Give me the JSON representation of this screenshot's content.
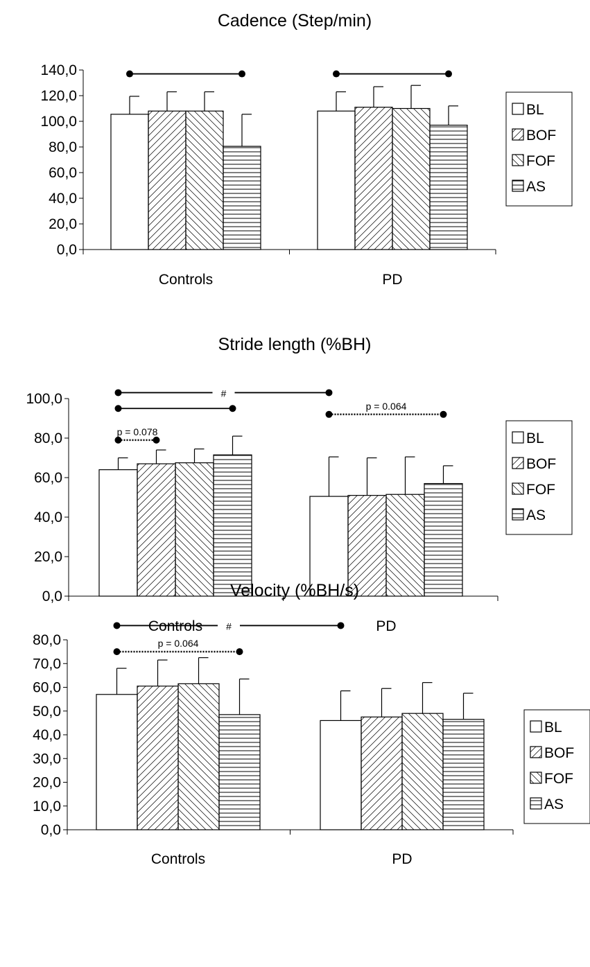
{
  "chart_data": [
    {
      "type": "bar",
      "title": "Cadence (Step/min)",
      "categories": [
        "Controls",
        "PD"
      ],
      "series": [
        {
          "name": "BL",
          "values": [
            105.5,
            108.0
          ],
          "errors": [
            14.0,
            15.0
          ]
        },
        {
          "name": "BOF",
          "values": [
            108.0,
            111.0
          ],
          "errors": [
            15.0,
            16.0
          ]
        },
        {
          "name": "FOF",
          "values": [
            108.0,
            110.0
          ],
          "errors": [
            15.0,
            18.0
          ]
        },
        {
          "name": "AS",
          "values": [
            80.5,
            97.0
          ],
          "errors": [
            25.0,
            15.0
          ]
        }
      ],
      "yticks": [
        "0,0",
        "20,0",
        "40,0",
        "60,0",
        "80,0",
        "100,0",
        "120,0",
        "140,0"
      ],
      "ylim": [
        0,
        140
      ],
      "annotations": [
        {
          "from": [
            "Controls",
            "BL"
          ],
          "to": [
            "Controls",
            "AS"
          ],
          "y": 137,
          "style": "solid",
          "label": ""
        },
        {
          "from": [
            "PD",
            "BL"
          ],
          "to": [
            "PD",
            "AS"
          ],
          "y": 137,
          "style": "solid",
          "label": ""
        }
      ],
      "legend": "right"
    },
    {
      "type": "bar",
      "title": "Stride length (%BH)",
      "categories": [
        "Controls",
        "PD"
      ],
      "series": [
        {
          "name": "BL",
          "values": [
            64.0,
            50.5
          ],
          "errors": [
            6.0,
            20.0
          ]
        },
        {
          "name": "BOF",
          "values": [
            67.0,
            51.0
          ],
          "errors": [
            7.0,
            19.0
          ]
        },
        {
          "name": "FOF",
          "values": [
            67.5,
            51.5
          ],
          "errors": [
            7.0,
            19.0
          ]
        },
        {
          "name": "AS",
          "values": [
            71.5,
            57.0
          ],
          "errors": [
            9.5,
            9.0
          ]
        }
      ],
      "yticks": [
        "0,0",
        "20,0",
        "40,0",
        "60,0",
        "80,0",
        "100,0"
      ],
      "ylim": [
        0,
        100
      ],
      "annotations": [
        {
          "from": [
            "Controls",
            "BL"
          ],
          "to": [
            "PD",
            "BL"
          ],
          "y": 103,
          "style": "solid",
          "label": "#"
        },
        {
          "from": [
            "Controls",
            "BL"
          ],
          "to": [
            "Controls",
            "AS"
          ],
          "y": 95,
          "style": "solid",
          "label": ""
        },
        {
          "from": [
            "Controls",
            "BL"
          ],
          "to": [
            "Controls",
            "BOF"
          ],
          "y": 79,
          "style": "dotted",
          "label": "p = 0.078"
        },
        {
          "from": [
            "PD",
            "BL"
          ],
          "to": [
            "PD",
            "AS"
          ],
          "y": 92,
          "style": "dotted",
          "label": "p = 0.064"
        }
      ],
      "legend": "right"
    },
    {
      "type": "bar",
      "title": "Velocity (%BH/s)",
      "categories": [
        "Controls",
        "PD"
      ],
      "series": [
        {
          "name": "BL",
          "values": [
            57.0,
            46.0
          ],
          "errors": [
            11.0,
            12.5
          ]
        },
        {
          "name": "BOF",
          "values": [
            60.5,
            47.5
          ],
          "errors": [
            11.0,
            12.0
          ]
        },
        {
          "name": "FOF",
          "values": [
            61.5,
            49.0
          ],
          "errors": [
            11.0,
            13.0
          ]
        },
        {
          "name": "AS",
          "values": [
            48.5,
            46.5
          ],
          "errors": [
            15.0,
            11.0
          ]
        }
      ],
      "yticks": [
        "0,0",
        "10,0",
        "20,0",
        "30,0",
        "40,0",
        "50,0",
        "60,0",
        "70,0",
        "80,0"
      ],
      "ylim": [
        0,
        80
      ],
      "annotations": [
        {
          "from": [
            "Controls",
            "BL"
          ],
          "to": [
            "PD",
            "BL"
          ],
          "y": 86,
          "style": "solid",
          "label": "#"
        },
        {
          "from": [
            "Controls",
            "BL"
          ],
          "to": [
            "Controls",
            "AS"
          ],
          "y": 75,
          "style": "dotted",
          "label": "p = 0.064"
        }
      ],
      "legend": "right"
    }
  ]
}
